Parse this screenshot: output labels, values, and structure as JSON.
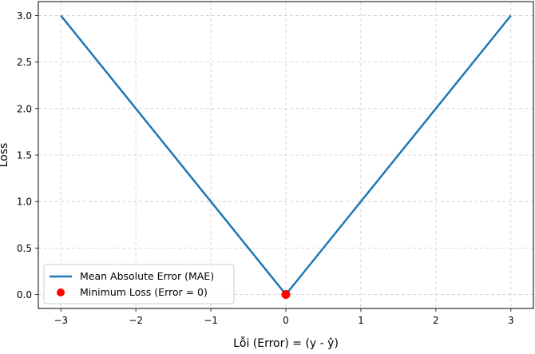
{
  "chart_data": {
    "type": "line",
    "xlabel": "Lỗi (Error) = (y - ŷ)",
    "ylabel": "Loss",
    "xlim": [
      -3.3,
      3.3
    ],
    "ylim": [
      -0.15,
      3.15
    ],
    "xticks": [
      -3,
      -2,
      -1,
      0,
      1,
      2,
      3
    ],
    "xtick_labels": [
      "−3",
      "−2",
      "−1",
      "0",
      "1",
      "2",
      "3"
    ],
    "yticks": [
      0.0,
      0.5,
      1.0,
      1.5,
      2.0,
      2.5,
      3.0
    ],
    "ytick_labels": [
      "0.0",
      "0.5",
      "1.0",
      "1.5",
      "2.0",
      "2.5",
      "3.0"
    ],
    "grid": true,
    "legend_position": "lower-left",
    "series": [
      {
        "name": "Mean Absolute Error (MAE)",
        "kind": "line",
        "color": "#1f77b4",
        "x": [
          -3,
          0,
          3
        ],
        "y": [
          3,
          0,
          3
        ]
      },
      {
        "name": "Minimum Loss (Error = 0)",
        "kind": "point",
        "color": "#ff0000",
        "x": [
          0
        ],
        "y": [
          0
        ]
      }
    ]
  }
}
